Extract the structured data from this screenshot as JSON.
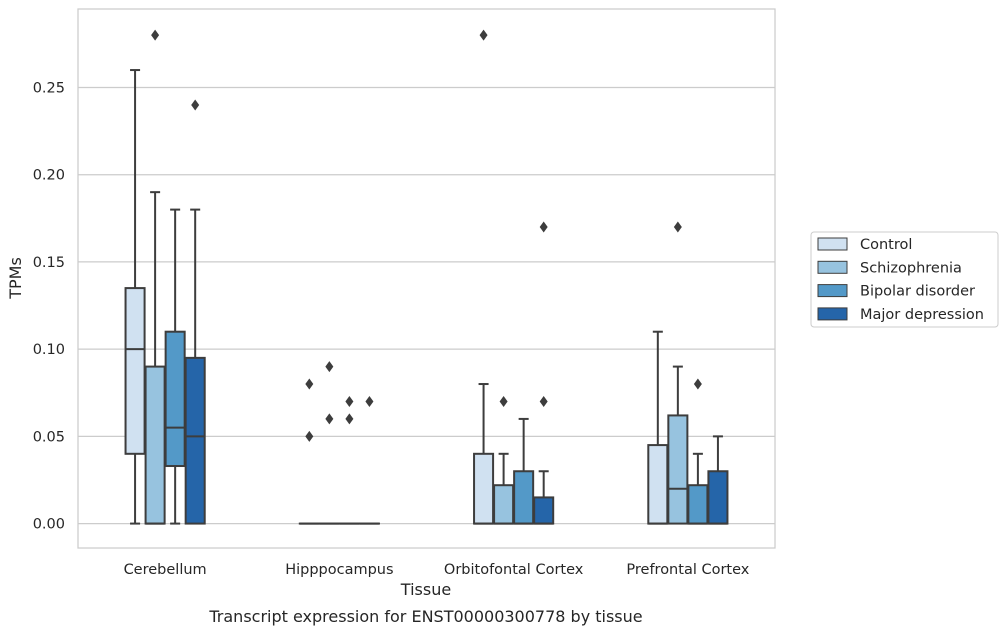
{
  "chart_data": {
    "type": "box",
    "xlabel": "Tissue",
    "ylabel": "TPMs",
    "caption": "Transcript expression for ENST00000300778 by tissue",
    "ylim": [
      -0.014,
      0.295
    ],
    "yticks": [
      "0.00",
      "0.05",
      "0.10",
      "0.15",
      "0.20",
      "0.25"
    ],
    "grid": "horizontal",
    "legend_position": "right",
    "categories": [
      "Cerebellum",
      "Hipppocampus",
      "Orbitofontal Cortex",
      "Prefrontal Cortex"
    ],
    "series": [
      {
        "name": "Control",
        "color": "#d0e1f1"
      },
      {
        "name": "Schizophrenia",
        "color": "#97c3df"
      },
      {
        "name": "Bipolar disorder",
        "color": "#5399c8"
      },
      {
        "name": "Major depression",
        "color": "#2565a9"
      }
    ],
    "boxes": [
      [
        {
          "whislo": 0.0,
          "q1": 0.04,
          "med": 0.1,
          "q3": 0.135,
          "whishi": 0.26,
          "fliers": []
        },
        {
          "whislo": 0.0,
          "q1": 0.0,
          "med": 0.0,
          "q3": 0.09,
          "whishi": 0.19,
          "fliers": [
            0.28
          ]
        },
        {
          "whislo": 0.0,
          "q1": 0.033,
          "med": 0.055,
          "q3": 0.11,
          "whishi": 0.18,
          "fliers": []
        },
        {
          "whislo": 0.0,
          "q1": 0.0,
          "med": 0.05,
          "q3": 0.095,
          "whishi": 0.18,
          "fliers": [
            0.24
          ]
        }
      ],
      [
        {
          "whislo": 0.0,
          "q1": 0.0,
          "med": 0.0,
          "q3": 0.0,
          "whishi": 0.0,
          "fliers": [
            0.05,
            0.08
          ]
        },
        {
          "whislo": 0.0,
          "q1": 0.0,
          "med": 0.0,
          "q3": 0.0,
          "whishi": 0.0,
          "fliers": [
            0.06,
            0.09
          ]
        },
        {
          "whislo": 0.0,
          "q1": 0.0,
          "med": 0.0,
          "q3": 0.0,
          "whishi": 0.0,
          "fliers": [
            0.06,
            0.07
          ]
        },
        {
          "whislo": 0.0,
          "q1": 0.0,
          "med": 0.0,
          "q3": 0.0,
          "whishi": 0.0,
          "fliers": [
            0.07
          ]
        }
      ],
      [
        {
          "whislo": 0.0,
          "q1": 0.0,
          "med": 0.0,
          "q3": 0.04,
          "whishi": 0.08,
          "fliers": [
            0.28
          ]
        },
        {
          "whislo": 0.0,
          "q1": 0.0,
          "med": 0.0,
          "q3": 0.022,
          "whishi": 0.04,
          "fliers": [
            0.07
          ]
        },
        {
          "whislo": 0.0,
          "q1": 0.0,
          "med": 0.0,
          "q3": 0.03,
          "whishi": 0.06,
          "fliers": []
        },
        {
          "whislo": 0.0,
          "q1": 0.0,
          "med": 0.0,
          "q3": 0.015,
          "whishi": 0.03,
          "fliers": [
            0.07,
            0.17
          ]
        }
      ],
      [
        {
          "whislo": 0.0,
          "q1": 0.0,
          "med": 0.0,
          "q3": 0.045,
          "whishi": 0.11,
          "fliers": []
        },
        {
          "whislo": 0.0,
          "q1": 0.0,
          "med": 0.02,
          "q3": 0.062,
          "whishi": 0.09,
          "fliers": [
            0.17
          ]
        },
        {
          "whislo": 0.0,
          "q1": 0.0,
          "med": 0.0,
          "q3": 0.022,
          "whishi": 0.04,
          "fliers": [
            0.08
          ]
        },
        {
          "whislo": 0.0,
          "q1": 0.0,
          "med": 0.0,
          "q3": 0.03,
          "whishi": 0.05,
          "fliers": []
        }
      ]
    ]
  }
}
